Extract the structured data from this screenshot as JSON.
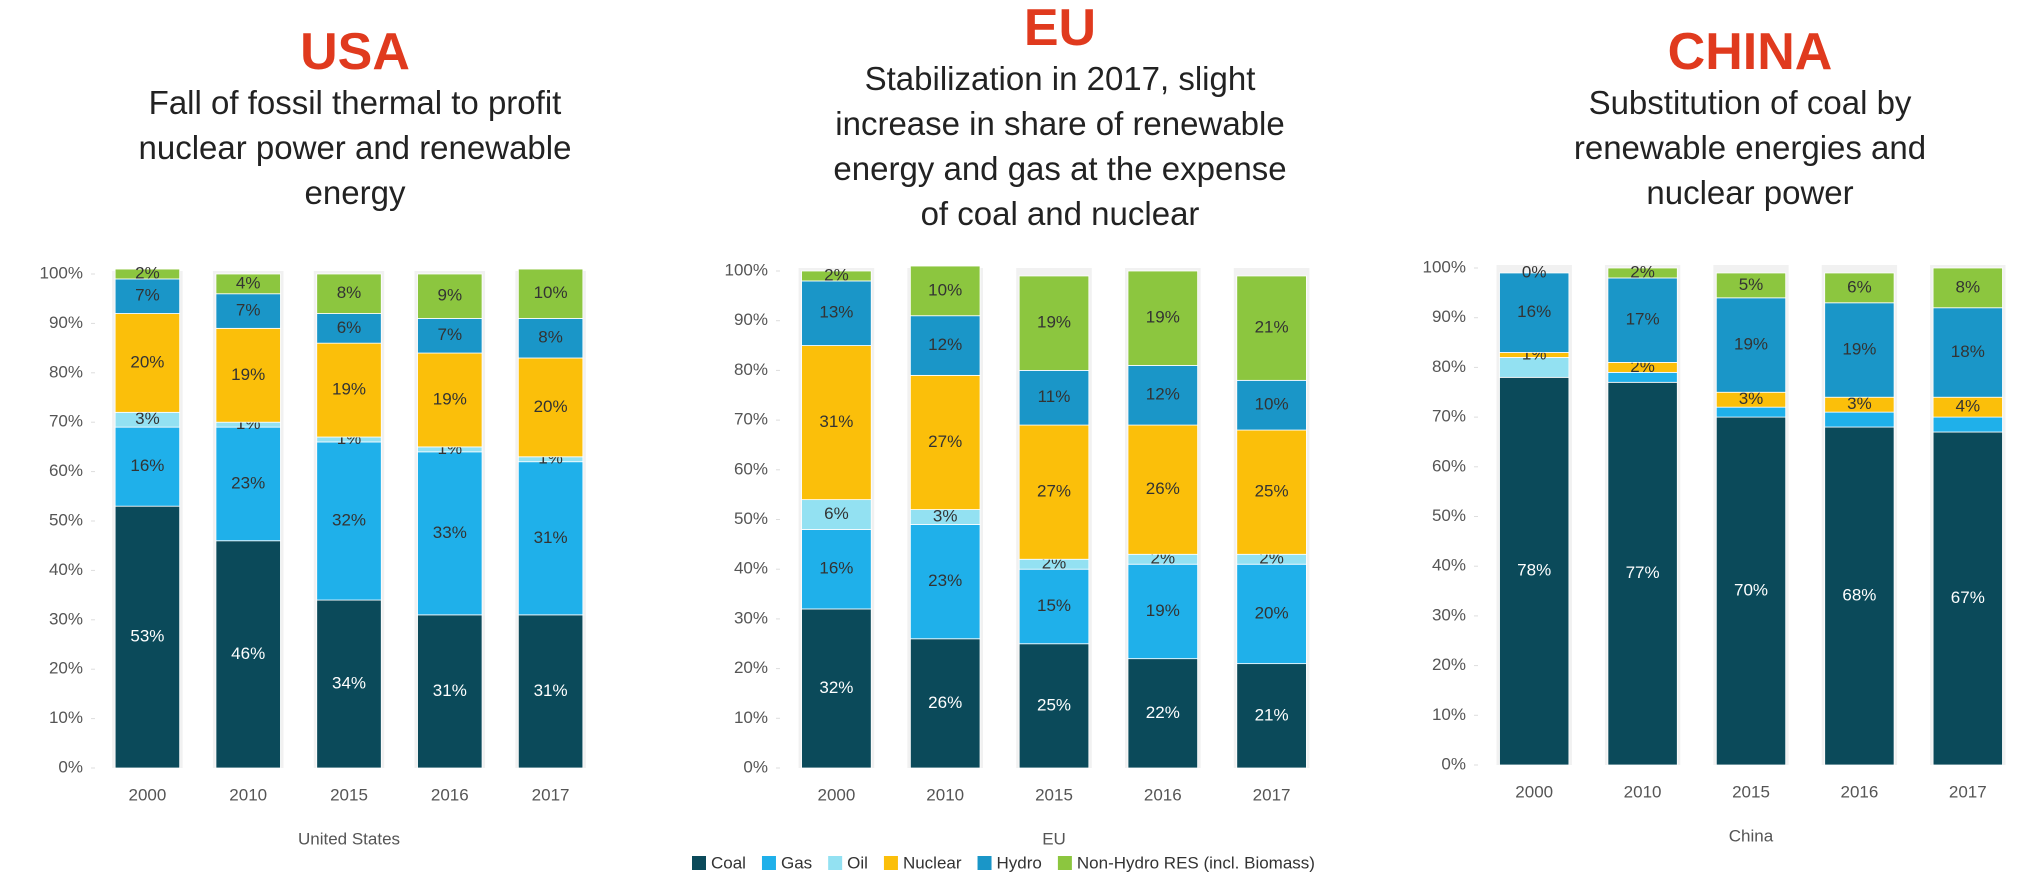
{
  "chart_data": [
    {
      "type": "bar",
      "stacked": true,
      "title": "USA",
      "subtitle": "Fall of fossil thermal to profit nuclear power and renewable energy",
      "xlabel": "United States",
      "categories": [
        "2000",
        "2010",
        "2015",
        "2016",
        "2017"
      ],
      "ylim": [
        0,
        100
      ],
      "yticks": [
        {
          "value": 0,
          "label": "0%"
        },
        {
          "value": 10,
          "label": "10%"
        },
        {
          "value": 20,
          "label": "20%"
        },
        {
          "value": 30,
          "label": "30%"
        },
        {
          "value": 40,
          "label": "40%"
        },
        {
          "value": 50,
          "label": "50%"
        },
        {
          "value": 60,
          "label": "60%"
        },
        {
          "value": 70,
          "label": "70%"
        },
        {
          "value": 80,
          "label": "80%"
        },
        {
          "value": 90,
          "label": "90%"
        },
        {
          "value": 100,
          "label": "100%"
        }
      ],
      "series": [
        {
          "name": "Coal",
          "color": "#0b4a5a",
          "values": [
            53,
            46,
            34,
            31,
            31
          ],
          "value_labels": [
            "53%",
            "46%",
            "34%",
            "31%",
            "31%"
          ]
        },
        {
          "name": "Gas",
          "color": "#1fb0ea",
          "values": [
            16,
            23,
            32,
            33,
            31
          ],
          "value_labels": [
            "16%",
            "23%",
            "32%",
            "33%",
            "31%"
          ]
        },
        {
          "name": "Oil",
          "color": "#93e1f2",
          "values": [
            3,
            1,
            1,
            1,
            1
          ],
          "value_labels": [
            "3%",
            "1%",
            "1%",
            "1%",
            "1%"
          ]
        },
        {
          "name": "Nuclear",
          "color": "#fbbf0a",
          "values": [
            20,
            19,
            19,
            19,
            20
          ],
          "value_labels": [
            "20%",
            "19%",
            "19%",
            "19%",
            "20%"
          ]
        },
        {
          "name": "Hydro",
          "color": "#1a96c8",
          "values": [
            7,
            7,
            6,
            7,
            8
          ],
          "value_labels": [
            "7%",
            "7%",
            "6%",
            "7%",
            "8%"
          ]
        },
        {
          "name": "Non-Hydro RES (incl. Biomass)",
          "color": "#8cc63f",
          "values": [
            2,
            4,
            8,
            9,
            10
          ],
          "value_labels": [
            "2%",
            "4%",
            "8%",
            "9%",
            "10%"
          ]
        }
      ]
    },
    {
      "type": "bar",
      "stacked": true,
      "title": "EU",
      "subtitle": "Stabilization in 2017, slight increase in share of renewable energy and gas at the expense of coal and nuclear",
      "xlabel": "EU",
      "categories": [
        "2000",
        "2010",
        "2015",
        "2016",
        "2017"
      ],
      "ylim": [
        0,
        100
      ],
      "yticks": [
        {
          "value": 0,
          "label": "0%"
        },
        {
          "value": 10,
          "label": "10%"
        },
        {
          "value": 20,
          "label": "20%"
        },
        {
          "value": 30,
          "label": "30%"
        },
        {
          "value": 40,
          "label": "40%"
        },
        {
          "value": 50,
          "label": "50%"
        },
        {
          "value": 60,
          "label": "60%"
        },
        {
          "value": 70,
          "label": "70%"
        },
        {
          "value": 80,
          "label": "80%"
        },
        {
          "value": 90,
          "label": "90%"
        },
        {
          "value": 100,
          "label": "100%"
        }
      ],
      "series": [
        {
          "name": "Coal",
          "color": "#0b4a5a",
          "values": [
            32,
            26,
            25,
            22,
            21
          ],
          "value_labels": [
            "32%",
            "26%",
            "25%",
            "22%",
            "21%"
          ]
        },
        {
          "name": "Gas",
          "color": "#1fb0ea",
          "values": [
            16,
            23,
            15,
            19,
            20
          ],
          "value_labels": [
            "16%",
            "23%",
            "15%",
            "19%",
            "20%"
          ]
        },
        {
          "name": "Oil",
          "color": "#93e1f2",
          "values": [
            6,
            3,
            2,
            2,
            2
          ],
          "value_labels": [
            "6%",
            "3%",
            "2%",
            "2%",
            "2%"
          ]
        },
        {
          "name": "Nuclear",
          "color": "#fbbf0a",
          "values": [
            31,
            27,
            27,
            26,
            25
          ],
          "value_labels": [
            "31%",
            "27%",
            "27%",
            "26%",
            "25%"
          ]
        },
        {
          "name": "Hydro",
          "color": "#1a96c8",
          "values": [
            13,
            12,
            11,
            12,
            10
          ],
          "value_labels": [
            "13%",
            "12%",
            "11%",
            "12%",
            "10%"
          ]
        },
        {
          "name": "Non-Hydro RES (incl. Biomass)",
          "color": "#8cc63f",
          "values": [
            2,
            10,
            19,
            19,
            21
          ],
          "value_labels": [
            "2%",
            "10%",
            "19%",
            "19%",
            "21%"
          ]
        }
      ]
    },
    {
      "type": "bar",
      "stacked": true,
      "title": "CHINA",
      "subtitle": "Substitution of coal by renewable energies and nuclear power",
      "xlabel": "China",
      "categories": [
        "2000",
        "2010",
        "2015",
        "2016",
        "2017"
      ],
      "ylim": [
        0,
        100
      ],
      "yticks": [
        {
          "value": 0,
          "label": "0%"
        },
        {
          "value": 10,
          "label": "10%"
        },
        {
          "value": 20,
          "label": "20%"
        },
        {
          "value": 30,
          "label": "30%"
        },
        {
          "value": 40,
          "label": "40%"
        },
        {
          "value": 50,
          "label": "50%"
        },
        {
          "value": 60,
          "label": "60%"
        },
        {
          "value": 70,
          "label": "70%"
        },
        {
          "value": 80,
          "label": "80%"
        },
        {
          "value": 90,
          "label": "90%"
        },
        {
          "value": 100,
          "label": "100%"
        }
      ],
      "series": [
        {
          "name": "Coal",
          "color": "#0b4a5a",
          "values": [
            78,
            77,
            70,
            68,
            67
          ],
          "value_labels": [
            "78%",
            "77%",
            "70%",
            "68%",
            "67%"
          ]
        },
        {
          "name": "Gas",
          "color": "#1fb0ea",
          "values": [
            0,
            2,
            2,
            3,
            3
          ],
          "value_labels": [
            null,
            null,
            null,
            null,
            null
          ]
        },
        {
          "name": "Oil",
          "color": "#93e1f2",
          "values": [
            4,
            0,
            0,
            0,
            0
          ],
          "value_labels": [
            null,
            null,
            null,
            null,
            null
          ]
        },
        {
          "name": "Nuclear",
          "color": "#fbbf0a",
          "values": [
            1,
            2,
            3,
            3,
            4
          ],
          "value_labels": [
            "1%",
            "2%",
            "3%",
            "3%",
            "4%"
          ]
        },
        {
          "name": "Hydro",
          "color": "#1a96c8",
          "values": [
            16,
            17,
            19,
            19,
            18
          ],
          "value_labels": [
            "16%",
            "17%",
            "19%",
            "19%",
            "18%"
          ]
        },
        {
          "name": "Non-Hydro RES (incl. Biomass)",
          "color": "#8cc63f",
          "values": [
            0,
            2,
            5,
            6,
            8
          ],
          "value_labels": [
            "0%",
            "2%",
            "5%",
            "6%",
            "8%"
          ]
        }
      ]
    }
  ]
}
